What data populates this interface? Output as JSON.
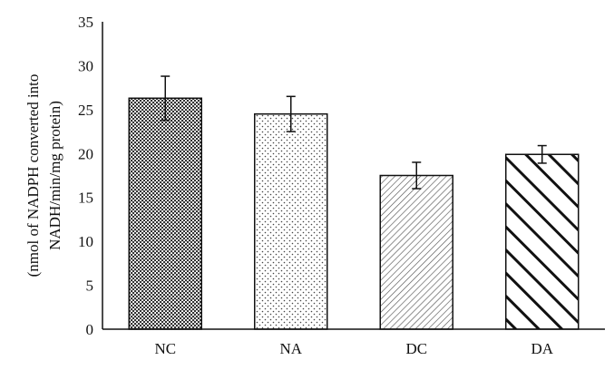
{
  "chart_data": {
    "type": "bar",
    "title": "",
    "xlabel": "",
    "ylabel": [
      "(nmol of NADPH converted into",
      "NADH/min/mg protein)"
    ],
    "categories": [
      "NC",
      "NA",
      "DC",
      "DA"
    ],
    "values": [
      26.3,
      24.5,
      17.5,
      19.9
    ],
    "errors": [
      2.5,
      2.0,
      1.5,
      1.0
    ],
    "patterns": [
      "dense-dots",
      "sparse-dots",
      "fine-diagonal-hatch",
      "bold-diagonal-hatch"
    ],
    "ylim": [
      0,
      35
    ],
    "yticks": [
      "0",
      "5",
      "10",
      "15",
      "20",
      "25",
      "30",
      "35"
    ],
    "grid": false,
    "legend": "none",
    "colors": {
      "axis": "#111111",
      "bar_edge": "#111111",
      "fill": "#ffffff"
    }
  }
}
